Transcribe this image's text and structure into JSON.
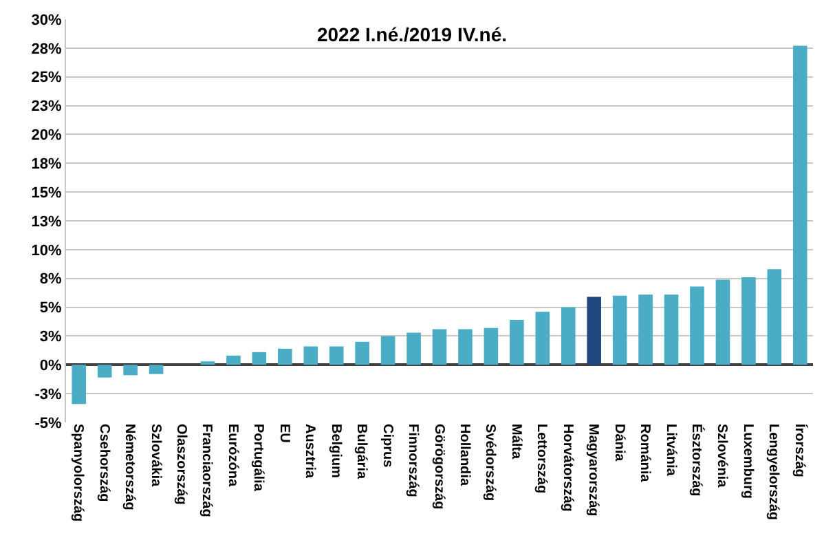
{
  "chart_data": {
    "type": "bar",
    "title": "2022 I.né./2019 IV.né.",
    "categories": [
      "Spanyolország",
      "Csehország",
      "Németország",
      "Szlovákia",
      "Olaszország",
      "Franciaország",
      "Eurózóna",
      "Portugália",
      "EU",
      "Ausztria",
      "Belgium",
      "Bulgária",
      "Ciprus",
      "Finnország",
      "Görögország",
      "Hollandia",
      "Svédország",
      "Málta",
      "Lettország",
      "Horvátország",
      "Magyarország",
      "Dánia",
      "Románia",
      "Litvánia",
      "Észtország",
      "Szlovénia",
      "Luxemburg",
      "Lengyelország",
      "Írország"
    ],
    "values": [
      -3.4,
      -1.1,
      -0.9,
      -0.8,
      0,
      0.3,
      0.8,
      1.1,
      1.4,
      1.6,
      1.6,
      2.0,
      2.5,
      2.8,
      3.1,
      3.1,
      3.2,
      3.9,
      4.6,
      5.0,
      5.9,
      6.0,
      6.1,
      6.1,
      6.8,
      7.4,
      7.6,
      8.3,
      27.7
    ],
    "colors": [
      "#4bacc6",
      "#4bacc6",
      "#4bacc6",
      "#4bacc6",
      "#4bacc6",
      "#4bacc6",
      "#4bacc6",
      "#4bacc6",
      "#4bacc6",
      "#4bacc6",
      "#4bacc6",
      "#4bacc6",
      "#4bacc6",
      "#4bacc6",
      "#4bacc6",
      "#4bacc6",
      "#4bacc6",
      "#4bacc6",
      "#4bacc6",
      "#4bacc6",
      "#1f497d",
      "#4bacc6",
      "#4bacc6",
      "#4bacc6",
      "#4bacc6",
      "#4bacc6",
      "#4bacc6",
      "#4bacc6",
      "#4bacc6"
    ],
    "ylim": [
      -5,
      30
    ],
    "yticks": [
      {
        "value": -5,
        "label": "-5%"
      },
      {
        "value": -2.5,
        "label": "-3%"
      },
      {
        "value": 0,
        "label": "0%"
      },
      {
        "value": 2.5,
        "label": "3%"
      },
      {
        "value": 5,
        "label": "5%"
      },
      {
        "value": 7.5,
        "label": "8%"
      },
      {
        "value": 10,
        "label": "10%"
      },
      {
        "value": 12.5,
        "label": "13%"
      },
      {
        "value": 15,
        "label": "15%"
      },
      {
        "value": 17.5,
        "label": "18%"
      },
      {
        "value": 20,
        "label": "20%"
      },
      {
        "value": 22.5,
        "label": "23%"
      },
      {
        "value": 25,
        "label": "25%"
      },
      {
        "value": 27.5,
        "label": "28%"
      },
      {
        "value": 30,
        "label": "30%"
      }
    ],
    "grid": "y"
  }
}
